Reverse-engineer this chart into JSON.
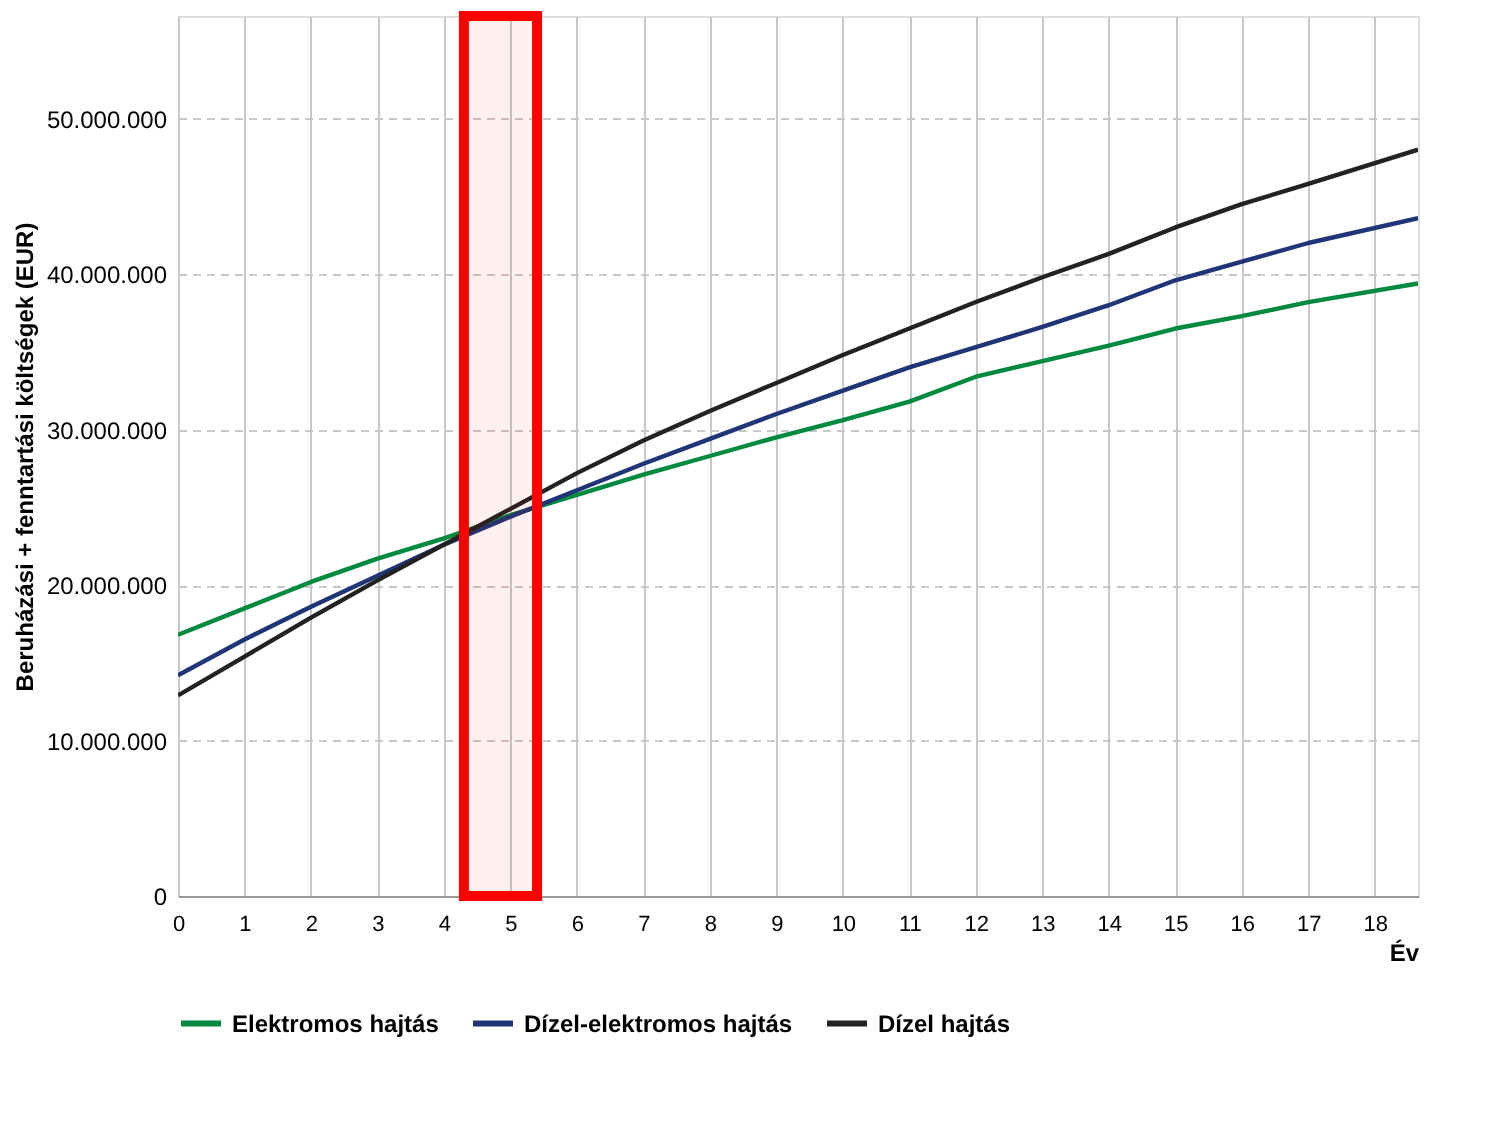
{
  "chart_data": {
    "type": "line",
    "xlabel": "Év",
    "ylabel": "Beruházási + fenntartási költségek (EUR)",
    "x": [
      0,
      1,
      2,
      3,
      4,
      5,
      6,
      7,
      8,
      9,
      10,
      11,
      12,
      13,
      14,
      15,
      16,
      17,
      18.65
    ],
    "series": [
      {
        "name": "Elektromos hajtás",
        "color": "#008a3e",
        "values": [
          16800000,
          18500000,
          20200000,
          21700000,
          23000000,
          24500000,
          25800000,
          27100000,
          28300000,
          29500000,
          30600000,
          31800000,
          33400000,
          34400000,
          35400000,
          36500000,
          37300000,
          38200000,
          39400000
        ]
      },
      {
        "name": "Dízel-elektromos hajtás",
        "color": "#1f3577",
        "values": [
          14200000,
          16500000,
          18600000,
          20600000,
          22600000,
          24400000,
          26100000,
          27800000,
          29400000,
          31000000,
          32500000,
          34000000,
          35300000,
          36600000,
          38000000,
          39600000,
          40800000,
          42000000,
          43600000
        ]
      },
      {
        "name": "Dízel hajtás",
        "color": "#222222",
        "values": [
          12900000,
          15400000,
          17900000,
          20300000,
          22600000,
          24900000,
          27200000,
          29300000,
          31200000,
          33000000,
          34800000,
          36500000,
          38200000,
          39800000,
          41300000,
          43000000,
          44500000,
          45800000,
          48000000
        ]
      }
    ],
    "xlim": [
      0,
      18.65
    ],
    "xticks": [
      0,
      1,
      2,
      3,
      4,
      5,
      6,
      7,
      8,
      9,
      10,
      11,
      12,
      13,
      14,
      15,
      16,
      17,
      18
    ],
    "ylim": [
      0,
      56600000
    ],
    "yticks": [
      0,
      {
        "value": 10000000,
        "label": "10.000.000"
      },
      {
        "value": 20000000,
        "label": "20.000.000"
      },
      {
        "value": 30000000,
        "label": "30.000.000"
      },
      {
        "value": 40000000,
        "label": "40.000.000"
      },
      {
        "value": 50000000,
        "label": "50.000.000"
      }
    ],
    "bands": [
      {
        "axis": "x",
        "from": 4.3,
        "to": 5.4,
        "color": "#ff0000"
      }
    ],
    "grid": true,
    "legend": "bottom",
    "marker": "none",
    "line_style": "solid"
  }
}
